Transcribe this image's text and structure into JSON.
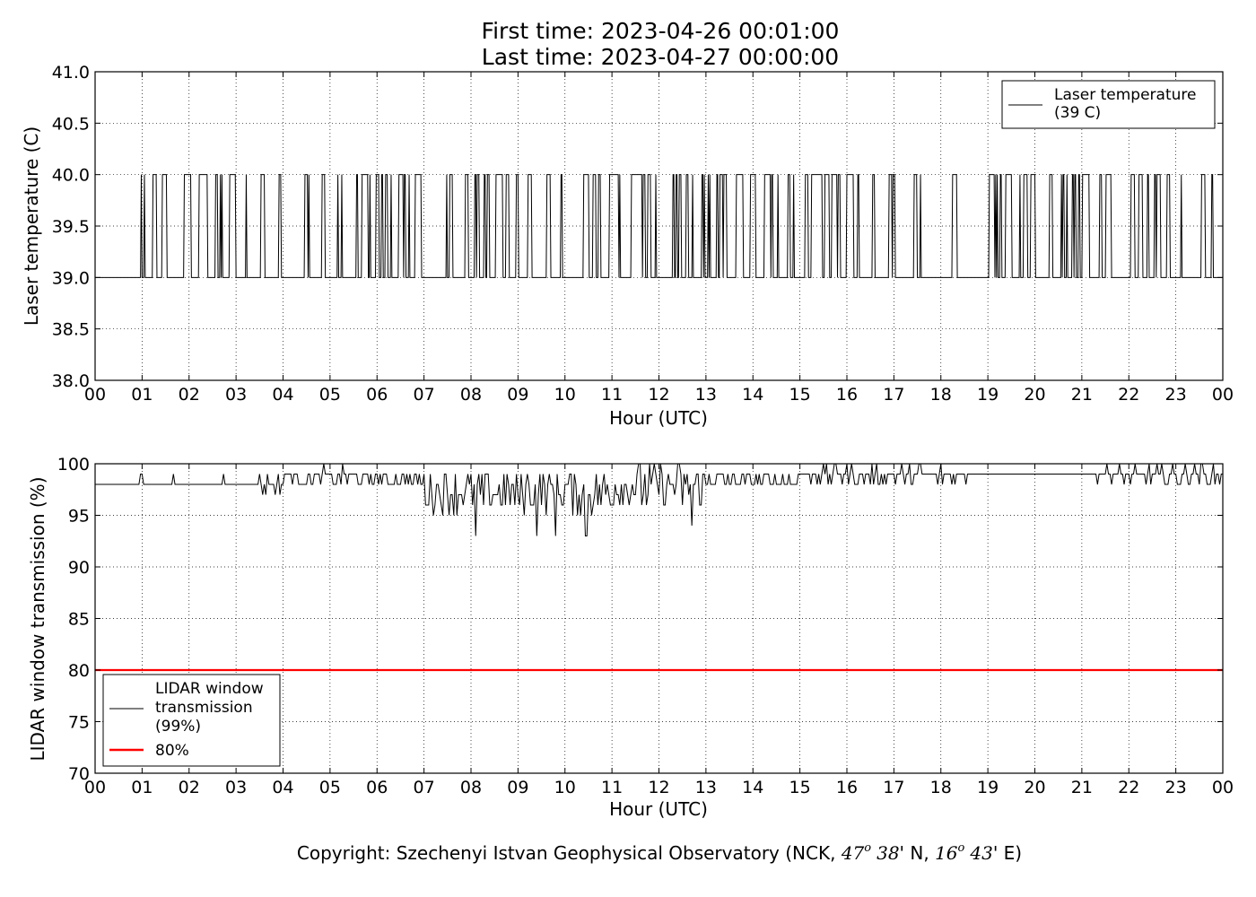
{
  "title_line1": "First time: 2023-04-26 00:01:00",
  "title_line2": "Last time: 2023-04-27 00:00:00",
  "footer": {
    "prefix": "Copyright: Szechenyi Istvan Geophysical Observatory (NCK, ",
    "lat_deg": "47",
    "lat_sup": "o",
    "lat_min": "38",
    "lat_rest": "' N, ",
    "lon_deg": "16",
    "lon_sup": "o",
    "lon_min": "43",
    "lon_rest": "' E)"
  },
  "chart_data": [
    {
      "type": "line",
      "xlabel": "Hour (UTC)",
      "ylabel": "Laser temperature (C)",
      "xlim": [
        0,
        24
      ],
      "ylim": [
        38.0,
        41.0
      ],
      "x_tick_labels": [
        "00",
        "01",
        "02",
        "03",
        "04",
        "05",
        "06",
        "07",
        "08",
        "09",
        "10",
        "11",
        "12",
        "13",
        "14",
        "15",
        "16",
        "17",
        "18",
        "19",
        "20",
        "21",
        "22",
        "23",
        "00"
      ],
      "y_ticks": [
        38.0,
        38.5,
        39.0,
        39.5,
        40.0,
        40.5,
        41.0
      ],
      "y_tick_labels": [
        "38.0",
        "38.5",
        "39.0",
        "39.5",
        "40.0",
        "40.5",
        "41.0"
      ],
      "grid": true,
      "legend_position": "top-right",
      "series": [
        {
          "name": "Laser temperature",
          "legend_line2": "(39 C)",
          "color": "#000000",
          "values_description": "1-minute samples toggling between 39.0 and 40.0",
          "levels": [
            39.0,
            40.0
          ],
          "high_fraction_by_hour": [
            0.18,
            0.1,
            0.4,
            0.25,
            0.22,
            0.35,
            0.55,
            0.3,
            0.35,
            0.4,
            0.4,
            0.35,
            0.45,
            0.4,
            0.3,
            0.45,
            0.35,
            0.2,
            0.15,
            0.5,
            0.2,
            0.2,
            0.35,
            0.3
          ]
        }
      ]
    },
    {
      "type": "line",
      "xlabel": "Hour (UTC)",
      "ylabel": "LIDAR window transmission (%)",
      "xlim": [
        0,
        24
      ],
      "ylim": [
        70,
        100
      ],
      "x_tick_labels": [
        "00",
        "01",
        "02",
        "03",
        "04",
        "05",
        "06",
        "07",
        "08",
        "09",
        "10",
        "11",
        "12",
        "13",
        "14",
        "15",
        "16",
        "17",
        "18",
        "19",
        "20",
        "21",
        "22",
        "23",
        "00"
      ],
      "y_ticks": [
        70,
        75,
        80,
        85,
        90,
        95,
        100
      ],
      "y_tick_labels": [
        "70",
        "75",
        "80",
        "85",
        "90",
        "95",
        "100"
      ],
      "grid": true,
      "legend_position": "bottom-left",
      "series": [
        {
          "name": "LIDAR window transmission",
          "legend_line1": "LIDAR window",
          "legend_line2": "transmission",
          "legend_line3": "(99%)",
          "color": "#000000",
          "baseline_by_hour": [
            98,
            98,
            98,
            98,
            98.8,
            98.8,
            98.5,
            97.5,
            97.5,
            97.5,
            97.5,
            98,
            98,
            98.5,
            98.5,
            99,
            99,
            99,
            99,
            99,
            99,
            99,
            99,
            99
          ],
          "minimum_dips": [
            {
              "x": 8.1,
              "y": 93
            },
            {
              "x": 9.4,
              "y": 93
            },
            {
              "x": 9.8,
              "y": 93
            },
            {
              "x": 10.45,
              "y": 93
            },
            {
              "x": 12.7,
              "y": 94
            }
          ]
        },
        {
          "name": "80%",
          "color": "#ff0000",
          "constant": 80
        }
      ]
    }
  ]
}
